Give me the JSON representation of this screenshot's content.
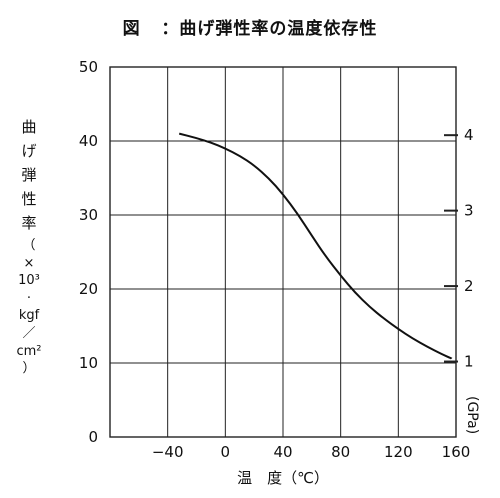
{
  "title": {
    "prefix": "図",
    "text": "：曲げ弾性率の温度依存性"
  },
  "chart_data": {
    "type": "line",
    "xlabel": "温　度（℃）",
    "ylabel_left_vertical": [
      "曲",
      "げ",
      "弾",
      "性",
      "率"
    ],
    "ylabel_left_unit": [
      "（",
      "×",
      "10³",
      "·",
      "kgf",
      "／",
      "cm²",
      "）"
    ],
    "ylabel_right": "(GPa)",
    "xlim": [
      -80,
      160
    ],
    "ylim": [
      0,
      50
    ],
    "x_ticks": [
      -40,
      0,
      40,
      80,
      120,
      160
    ],
    "x_tick_labels": [
      "−40",
      "0",
      "40",
      "80",
      "120",
      "160"
    ],
    "y_ticks": [
      0,
      10,
      20,
      30,
      40,
      50
    ],
    "y_tick_labels": [
      "0",
      "10",
      "20",
      "30",
      "40",
      "50"
    ],
    "right_ticks": [
      1,
      2,
      3,
      4
    ],
    "right_tick_labels": [
      "1",
      "2",
      "3",
      "4"
    ],
    "right_scale_kgf_per_gpa": 10.197,
    "grid": true,
    "series": [
      {
        "x": [
          -32,
          -20,
          -10,
          0,
          10,
          20,
          30,
          40,
          50,
          60,
          70,
          80,
          90,
          100,
          110,
          120,
          130,
          140,
          150,
          157
        ],
        "y": [
          41.0,
          40.4,
          39.8,
          39.0,
          38.0,
          36.7,
          35.0,
          32.8,
          30.2,
          27.2,
          24.3,
          21.8,
          19.5,
          17.6,
          16.0,
          14.6,
          13.3,
          12.2,
          11.2,
          10.6
        ]
      }
    ]
  },
  "colors": {
    "line": "#111111",
    "grid": "#222222",
    "background": "#ffffff"
  }
}
